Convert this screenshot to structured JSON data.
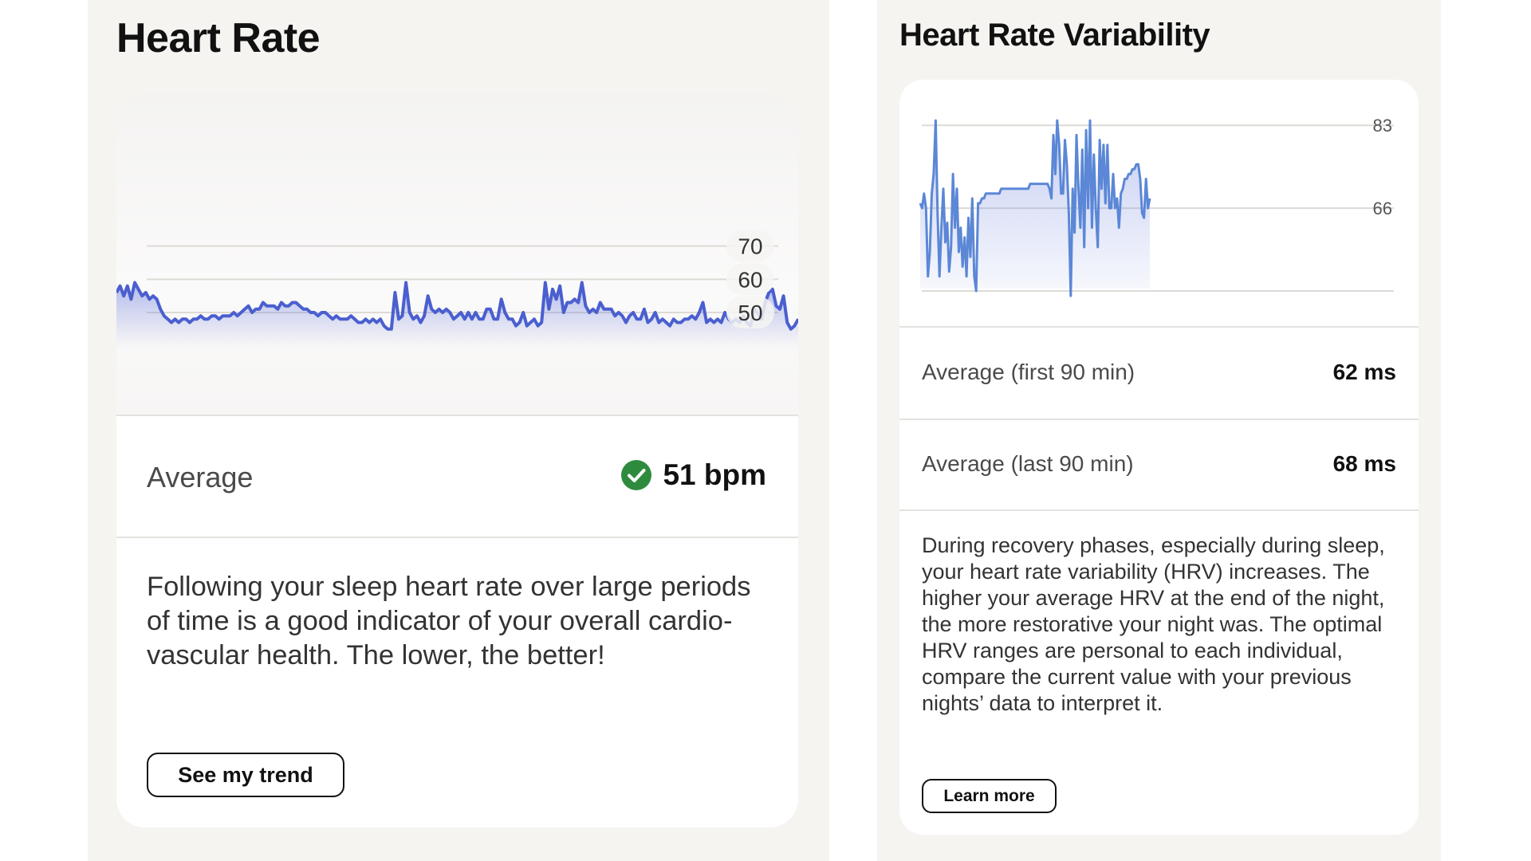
{
  "heart_rate": {
    "title": "Heart Rate",
    "average_label": "Average",
    "average_value": "51 bpm",
    "status_icon": "check-circle-icon",
    "status_color": "#2e8b3e",
    "description": "Following your sleep heart rate over large periods of time is a good indicator of your overall cardio-vascular health. The lower, the better!",
    "button_label": "See my trend"
  },
  "heart_rate_variability": {
    "title": "Heart Rate Variability",
    "first_label": "Average (first 90 min)",
    "first_value": "62 ms",
    "last_label": "Average (last 90 min)",
    "last_value": "68 ms",
    "description": "During recovery phases, especially during sleep, your heart rate variability (HRV) increases. The higher your average HRV at the end of the night, the more restorative your night was. The optimal HRV ranges are personal to each individual, compare the current value with your previous nights’ data to interpret it.",
    "button_label": "Learn more"
  },
  "chart_data": [
    {
      "type": "line",
      "chart": "heart_rate",
      "series_color": "#4a5fcf",
      "yticks": [
        70,
        60,
        50
      ],
      "ylim": [
        44,
        80
      ],
      "grid": true,
      "values": [
        56,
        58,
        55,
        58,
        54,
        59,
        57,
        55,
        56,
        54,
        55,
        54,
        51,
        49,
        48,
        47,
        48,
        47,
        48,
        48,
        47,
        48,
        48,
        49,
        48,
        48,
        49,
        49,
        48,
        49,
        49,
        49,
        50,
        49,
        50,
        51,
        52,
        50,
        51,
        51,
        53,
        52,
        52,
        52,
        51,
        53,
        52,
        52,
        53,
        53,
        52,
        51,
        51,
        50,
        50,
        49,
        50,
        50,
        49,
        48,
        49,
        48,
        48,
        48,
        49,
        48,
        47,
        47,
        48,
        47,
        48,
        47,
        48,
        46,
        45,
        45,
        56,
        48,
        49,
        59,
        50,
        48,
        49,
        47,
        49,
        55,
        51,
        50,
        51,
        50,
        51,
        50,
        48,
        49,
        50,
        48,
        50,
        48,
        50,
        48,
        48,
        51,
        51,
        48,
        48,
        54,
        50,
        48,
        48,
        46,
        47,
        50,
        46,
        47,
        48,
        46,
        47,
        59,
        51,
        57,
        54,
        58,
        50,
        53,
        53,
        54,
        53,
        59,
        52,
        50,
        51,
        50,
        53,
        51,
        51,
        51,
        49,
        50,
        49,
        47,
        49,
        50,
        48,
        48,
        51,
        47,
        48,
        50,
        47,
        48,
        47,
        46,
        48,
        47,
        47,
        48,
        48,
        49,
        48,
        50,
        53,
        47,
        48,
        47,
        48,
        47,
        50,
        48,
        47,
        48,
        47,
        49,
        47,
        46,
        51,
        50,
        48,
        53,
        56,
        57,
        52,
        51,
        55,
        47,
        45,
        46,
        48
      ]
    },
    {
      "type": "line",
      "chart": "heart_rate_variability",
      "series_color": "#5b87d6",
      "yticks": [
        83,
        66
      ],
      "ylim": [
        49,
        85
      ],
      "grid": true,
      "values": [
        67,
        66,
        69,
        66,
        52,
        57,
        69,
        73,
        84,
        65,
        52,
        62,
        70,
        59,
        63,
        53,
        58,
        73,
        62,
        70,
        57,
        62,
        54,
        60,
        52,
        64,
        56,
        68,
        52,
        49,
        67,
        67,
        68,
        68,
        69,
        69,
        69,
        69,
        69,
        69,
        69,
        69,
        70,
        70,
        70,
        70,
        70,
        70,
        70,
        70,
        70,
        70,
        70,
        70,
        70,
        70,
        70,
        71,
        71,
        71,
        71,
        71,
        71,
        71,
        71,
        71,
        71,
        70,
        68,
        81,
        73,
        84,
        79,
        69,
        69,
        80,
        75,
        65,
        48,
        70,
        61,
        81,
        70,
        62,
        78,
        58,
        82,
        66,
        84,
        62,
        77,
        66,
        58,
        80,
        70,
        79,
        67,
        79,
        66,
        66,
        73,
        66,
        68,
        62,
        69,
        70,
        72,
        72,
        73,
        73,
        74,
        74,
        75,
        75,
        72,
        65,
        64,
        72,
        66,
        68
      ]
    }
  ]
}
